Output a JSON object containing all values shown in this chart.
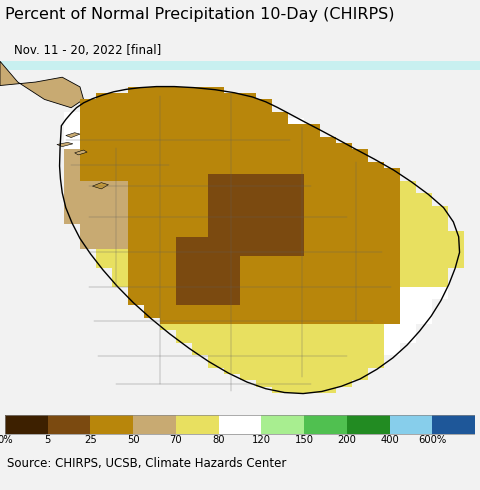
{
  "title": "Percent of Normal Precipitation 10-Day (CHIRPS)",
  "subtitle": "Nov. 11 - 20, 2022 [final]",
  "source": "Source: CHIRPS, UCSB, Climate Hazards Center",
  "colorbar_labels": [
    "0%",
    "5",
    "25",
    "50",
    "70",
    "80",
    "120",
    "150",
    "200",
    "400",
    "600%"
  ],
  "colorbar_colors": [
    "#3d2000",
    "#7B4A10",
    "#B8860B",
    "#C8AA72",
    "#E8E060",
    "#FFFFFF",
    "#A8EE90",
    "#50C050",
    "#228B22",
    "#87CEEB",
    "#1E5799"
  ],
  "ocean_color": "#C8F0F0",
  "title_fontsize": 11.5,
  "subtitle_fontsize": 8.5,
  "source_fontsize": 8.5,
  "fig_width": 4.8,
  "fig_height": 4.9,
  "dpi": 100,
  "lon_min": 79.35,
  "lon_max": 82.05,
  "lat_min": 5.7,
  "lat_max": 10.75
}
